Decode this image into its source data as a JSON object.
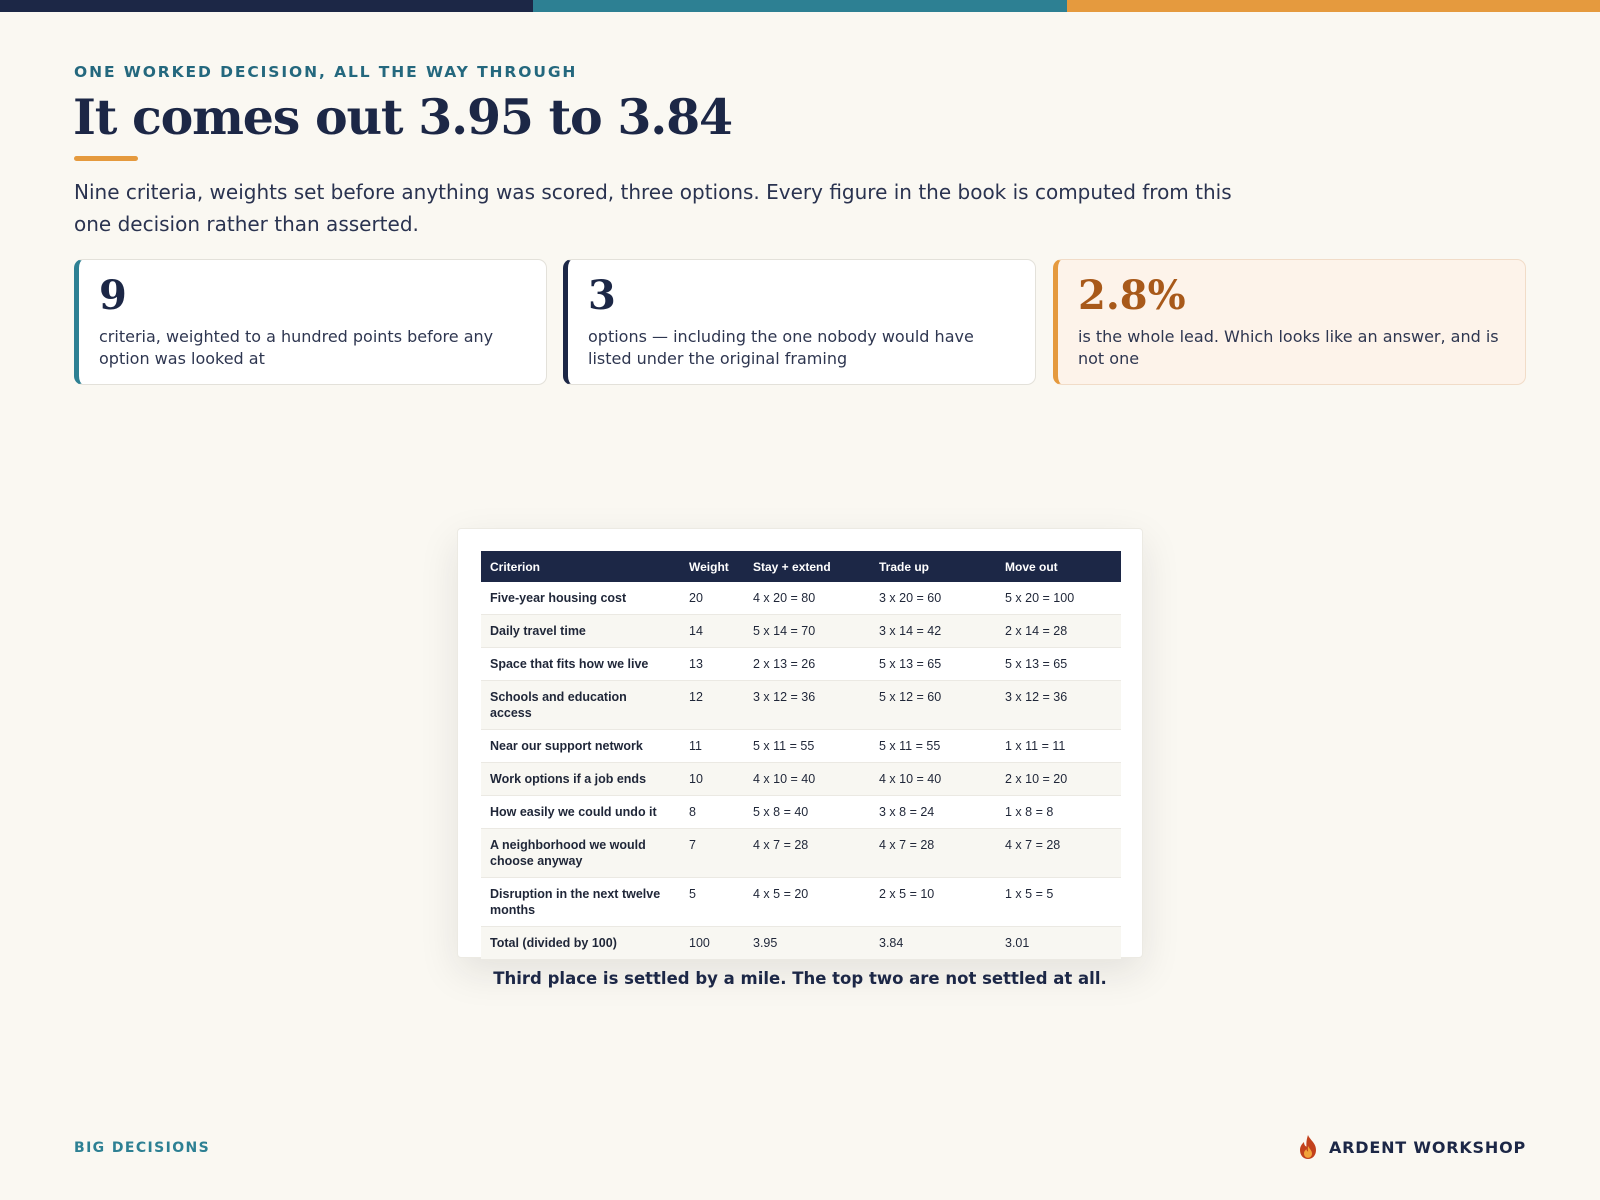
{
  "header": {
    "eyebrow": "ONE WORKED DECISION, ALL THE WAY THROUGH",
    "title": "It comes out 3.95 to 3.84",
    "lede": "Nine criteria, weights set before anything was scored, three options. Every figure in the book is computed from this one decision rather than asserted."
  },
  "stats": [
    {
      "value": "9",
      "text": "criteria, weighted to a hundred points before any option was looked at"
    },
    {
      "value": "3",
      "text": "options — including the one nobody would have listed under the original framing"
    },
    {
      "value": "2.8%",
      "text": "is the whole lead. Which looks like an answer, and is not one"
    }
  ],
  "table": {
    "columns": [
      "Criterion",
      "Weight",
      "Stay + extend",
      "Trade up",
      "Move out"
    ],
    "rows": [
      [
        "Five-year housing cost",
        "20",
        "4 x 20 = 80",
        "3 x 20 = 60",
        "5 x 20 = 100"
      ],
      [
        "Daily travel time",
        "14",
        "5 x 14 = 70",
        "3 x 14 = 42",
        "2 x 14 = 28"
      ],
      [
        "Space that fits how we live",
        "13",
        "2 x 13 = 26",
        "5 x 13 = 65",
        "5 x 13 = 65"
      ],
      [
        "Schools and education access",
        "12",
        "3 x 12 = 36",
        "5 x 12 = 60",
        "3 x 12 = 36"
      ],
      [
        "Near our support network",
        "11",
        "5 x 11 = 55",
        "5 x 11 = 55",
        "1 x 11 = 11"
      ],
      [
        "Work options if a job ends",
        "10",
        "4 x 10 = 40",
        "4 x 10 = 40",
        "2 x 10 = 20"
      ],
      [
        "How easily we could undo it",
        "8",
        "5 x 8 = 40",
        "3 x 8 = 24",
        "1 x 8 = 8"
      ],
      [
        "A neighborhood we would choose anyway",
        "7",
        "4 x 7 = 28",
        "4 x 7 = 28",
        "4 x 7 = 28"
      ],
      [
        "Disruption in the next twelve months",
        "5",
        "4 x 5 = 20",
        "2 x 5 = 10",
        "1 x 5 = 5"
      ],
      [
        "Total (divided by 100)",
        "100",
        "3.95",
        "3.84",
        "3.01"
      ]
    ]
  },
  "caption": "Third place is settled by a mile. The top two are not settled at all.",
  "footer": {
    "series": "BIG DECISIONS",
    "brand": "ARDENT WORKSHOP",
    "brand_icon": "flame-icon"
  }
}
